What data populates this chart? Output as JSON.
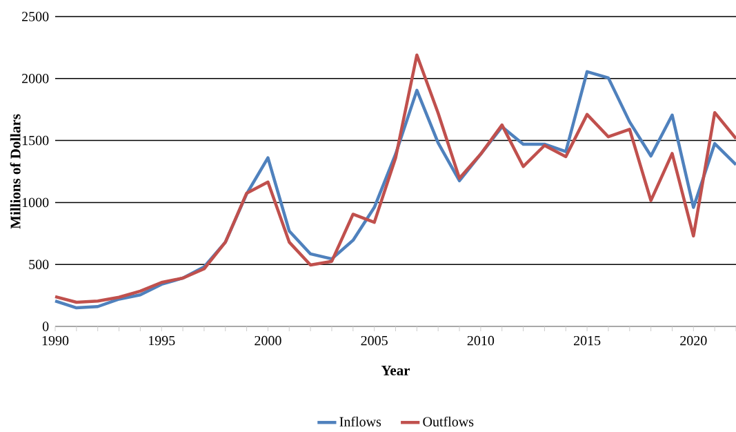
{
  "chart_data": {
    "type": "line",
    "xlabel": "Year",
    "ylabel": "Millions of Dollars",
    "x": [
      1990,
      1991,
      1992,
      1993,
      1994,
      1995,
      1996,
      1997,
      1998,
      1999,
      2000,
      2001,
      2002,
      2003,
      2004,
      2005,
      2006,
      2007,
      2008,
      2009,
      2010,
      2011,
      2012,
      2013,
      2014,
      2015,
      2016,
      2017,
      2018,
      2019,
      2020,
      2021,
      2022
    ],
    "series": [
      {
        "name": "Inflows",
        "color": "#4f81bd",
        "values": [
          205,
          150,
          160,
          220,
          255,
          340,
          390,
          480,
          680,
          1070,
          1360,
          770,
          585,
          545,
          695,
          960,
          1390,
          1905,
          1480,
          1175,
          1390,
          1610,
          1470,
          1470,
          1410,
          2055,
          2005,
          1650,
          1375,
          1705,
          960,
          1475,
          1305
        ]
      },
      {
        "name": "Outflows",
        "color": "#c0504d",
        "values": [
          240,
          195,
          205,
          235,
          285,
          355,
          390,
          465,
          680,
          1075,
          1165,
          680,
          495,
          525,
          905,
          840,
          1360,
          2190,
          1720,
          1195,
          1390,
          1625,
          1290,
          1460,
          1370,
          1710,
          1530,
          1590,
          1015,
          1395,
          730,
          1725,
          1515
        ]
      }
    ],
    "xlim": [
      1990,
      2022
    ],
    "ylim": [
      0,
      2500
    ],
    "xticks": [
      1990,
      {
        "value": 1991,
        "label": null
      },
      {
        "value": 1992,
        "label": null
      },
      {
        "value": 1993,
        "label": null
      },
      {
        "value": 1994,
        "label": null
      },
      1995,
      {
        "value": 1996,
        "label": null
      },
      {
        "value": 1997,
        "label": null
      },
      {
        "value": 1998,
        "label": null
      },
      {
        "value": 1999,
        "label": null
      },
      2000,
      {
        "value": 2001,
        "label": null
      },
      {
        "value": 2002,
        "label": null
      },
      {
        "value": 2003,
        "label": null
      },
      {
        "value": 2004,
        "label": null
      },
      2005,
      {
        "value": 2006,
        "label": null
      },
      {
        "value": 2007,
        "label": null
      },
      {
        "value": 2008,
        "label": null
      },
      {
        "value": 2009,
        "label": null
      },
      2010,
      {
        "value": 2011,
        "label": null
      },
      {
        "value": 2012,
        "label": null
      },
      {
        "value": 2013,
        "label": null
      },
      {
        "value": 2014,
        "label": null
      },
      2015,
      {
        "value": 2016,
        "label": null
      },
      {
        "value": 2017,
        "label": null
      },
      {
        "value": 2018,
        "label": null
      },
      {
        "value": 2019,
        "label": null
      },
      2020,
      {
        "value": 2021,
        "label": null
      },
      {
        "value": 2022,
        "label": null
      }
    ],
    "yticks": [
      0,
      500,
      1000,
      1500,
      2000,
      2500
    ],
    "grid": "y",
    "legend": "bottom",
    "marker": "none",
    "line_style": "solid"
  }
}
